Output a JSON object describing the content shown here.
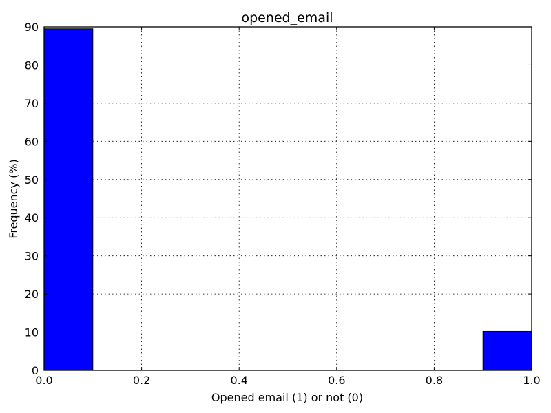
{
  "chart_data": {
    "type": "bar",
    "title": "opened_email",
    "xlabel": "Opened email (1) or not (0)",
    "ylabel": "Frequency (%)",
    "xlim": [
      0.0,
      1.0
    ],
    "ylim": [
      0,
      90
    ],
    "xticks": [
      "0.0",
      "0.2",
      "0.4",
      "0.6",
      "0.8",
      "1.0"
    ],
    "yticks": [
      "0",
      "10",
      "20",
      "30",
      "40",
      "50",
      "60",
      "70",
      "80",
      "90"
    ],
    "grid": true,
    "bins": [
      {
        "x0": 0.0,
        "x1": 0.1,
        "value": 89.5
      },
      {
        "x0": 0.9,
        "x1": 1.0,
        "value": 10.2
      }
    ],
    "bar_color": "#0000ff"
  }
}
